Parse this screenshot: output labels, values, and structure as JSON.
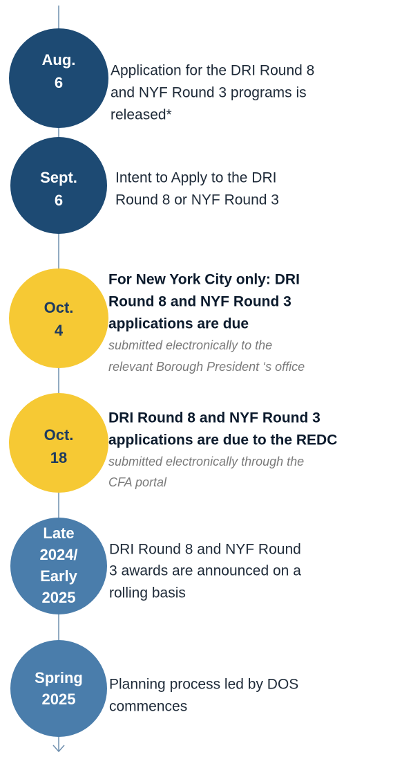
{
  "events": [
    {
      "date": [
        "Aug.",
        "6"
      ],
      "description": [
        "Application for the DRI Round 8",
        "and NYF Round 3 programs is",
        "released*"
      ]
    },
    {
      "date": [
        "Sept.",
        "6"
      ],
      "description": [
        "Intent to Apply to the DRI",
        "Round 8 or NYF Round 3"
      ]
    },
    {
      "date": [
        "Oct.",
        "4"
      ],
      "heading": [
        "For New York City only: DRI",
        "Round 8 and NYF Round 3",
        "applications are due"
      ],
      "note": [
        "submitted electronically to the",
        "relevant Borough President ‘s office"
      ]
    },
    {
      "date": [
        "Oct.",
        "18"
      ],
      "heading": [
        "DRI Round 8 and NYF Round 3",
        "applications are due to the REDC"
      ],
      "note": [
        "submitted electronically through the",
        "CFA portal"
      ]
    },
    {
      "date": [
        "Late",
        "2024/",
        "Early",
        "2025"
      ],
      "description": [
        "DRI Round 8 and NYF Round",
        "3 awards are announced on a",
        "rolling basis"
      ]
    },
    {
      "date": [
        "Spring",
        "2025"
      ],
      "description": [
        "Planning process led by DOS",
        "commences"
      ]
    }
  ]
}
